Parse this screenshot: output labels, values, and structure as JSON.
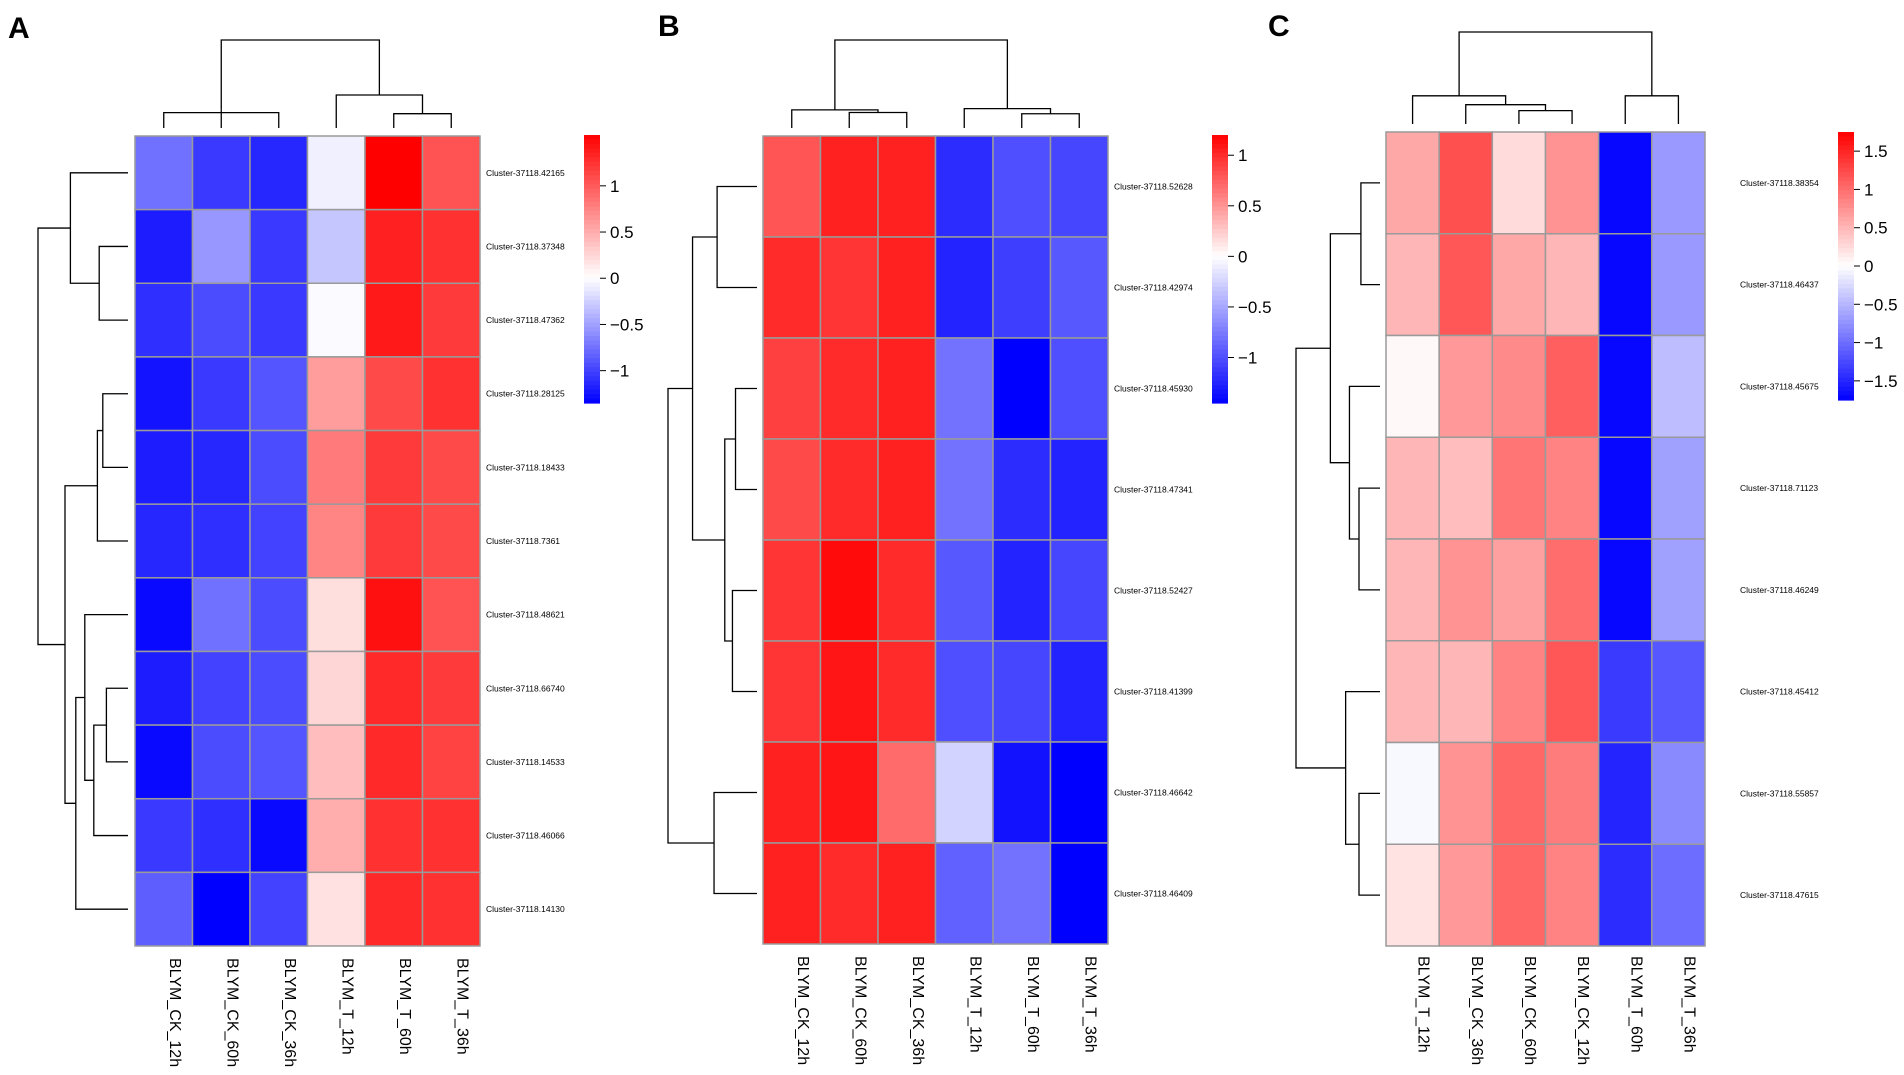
{
  "chart_data": [
    {
      "type": "heatmap",
      "panel_label": "A",
      "columns": [
        "BLYM_CK_12h",
        "BLYM_CK_60h",
        "BLYM_CK_36h",
        "BLYM_T_12h",
        "BLYM_T_60h",
        "BLYM_T_36h"
      ],
      "rows": [
        "Cluster-37118.42165",
        "Cluster-37118.37348",
        "Cluster-37118.47362",
        "Cluster-37118.28125",
        "Cluster-37118.18433",
        "Cluster-37118.7361",
        "Cluster-37118.48621",
        "Cluster-37118.66740",
        "Cluster-37118.14533",
        "Cluster-37118.46066",
        "Cluster-37118.14130"
      ],
      "values": [
        [
          -0.75,
          -1.05,
          -1.15,
          -0.08,
          1.55,
          1.05
        ],
        [
          -1.2,
          -0.55,
          -1.05,
          -0.3,
          1.35,
          1.25
        ],
        [
          -1.1,
          -0.95,
          -1.05,
          -0.02,
          1.4,
          1.2
        ],
        [
          -1.25,
          -1.05,
          -0.9,
          0.6,
          1.1,
          1.25
        ],
        [
          -1.2,
          -1.15,
          -0.95,
          0.8,
          1.2,
          1.1
        ],
        [
          -1.15,
          -1.1,
          -1.0,
          0.75,
          1.2,
          1.1
        ],
        [
          -1.3,
          -0.75,
          -0.95,
          0.2,
          1.45,
          1.05
        ],
        [
          -1.2,
          -1.0,
          -0.95,
          0.25,
          1.3,
          1.2
        ],
        [
          -1.3,
          -0.95,
          -0.9,
          0.4,
          1.3,
          1.15
        ],
        [
          -1.05,
          -1.1,
          -1.3,
          0.5,
          1.25,
          1.25
        ],
        [
          -0.85,
          -1.35,
          -1.0,
          0.18,
          1.3,
          1.25
        ]
      ],
      "colorbar": {
        "ticks": [
          1,
          0.5,
          0,
          -0.5,
          -1
        ],
        "tick_labels": [
          "1",
          "0.5",
          "0",
          "−0.5",
          "−1"
        ],
        "min": -1.35,
        "max": 1.55
      },
      "col_order_note": "columns listed in displayed (clustered) order",
      "col_tree": [
        [
          0,
          2,
          0.7
        ],
        [
          1,
          2,
          0.75
        ],
        [
          0,
          1,
          0.85
        ],
        [
          4,
          5,
          0.65
        ],
        [
          3,
          5,
          1.5
        ],
        [
          0,
          5,
          4.0
        ]
      ],
      "row_tree": [
        [
          1,
          2,
          0.8
        ],
        [
          0,
          2,
          1.6
        ],
        [
          3,
          4,
          0.7
        ],
        [
          3,
          5,
          0.85
        ],
        [
          7,
          8,
          0.6
        ],
        [
          7,
          9,
          0.95
        ],
        [
          6,
          9,
          1.2
        ],
        [
          6,
          10,
          1.45
        ],
        [
          3,
          10,
          1.75
        ],
        [
          0,
          10,
          2.5
        ]
      ]
    },
    {
      "type": "heatmap",
      "panel_label": "B",
      "columns": [
        "BLYM_CK_12h",
        "BLYM_CK_60h",
        "BLYM_CK_36h",
        "BLYM_T_12h",
        "BLYM_T_60h",
        "BLYM_T_36h"
      ],
      "rows": [
        "Cluster-37118.52628",
        "Cluster-37118.42974",
        "Cluster-37118.45930",
        "Cluster-37118.47341",
        "Cluster-37118.52427",
        "Cluster-37118.41399",
        "Cluster-37118.46642",
        "Cluster-37118.46409"
      ],
      "values": [
        [
          0.8,
          1.05,
          1.05,
          -1.2,
          -1.0,
          -1.05
        ],
        [
          1.0,
          0.95,
          1.05,
          -1.25,
          -1.1,
          -0.95
        ],
        [
          0.9,
          1.0,
          1.05,
          -0.8,
          -1.45,
          -1.0
        ],
        [
          0.85,
          1.0,
          1.05,
          -0.8,
          -1.2,
          -1.25
        ],
        [
          0.95,
          1.15,
          1.0,
          -0.95,
          -1.25,
          -1.05
        ],
        [
          0.95,
          1.1,
          1.0,
          -1.0,
          -1.05,
          -1.25
        ],
        [
          1.05,
          1.1,
          0.7,
          -0.25,
          -1.35,
          -1.45
        ],
        [
          1.05,
          1.0,
          1.05,
          -0.9,
          -0.8,
          -1.45
        ]
      ],
      "colorbar": {
        "ticks": [
          1,
          0.5,
          0,
          -0.5,
          -1
        ],
        "tick_labels": [
          "1",
          "0.5",
          "0",
          "−0.5",
          "−1"
        ],
        "min": -1.45,
        "max": 1.2
      },
      "col_tree": [
        [
          1,
          2,
          0.6
        ],
        [
          0,
          2,
          0.7
        ],
        [
          4,
          5,
          0.55
        ],
        [
          3,
          5,
          0.75
        ],
        [
          0,
          5,
          3.4
        ]
      ],
      "row_tree": [
        [
          0,
          1,
          1.3
        ],
        [
          2,
          3,
          0.7
        ],
        [
          4,
          5,
          0.8
        ],
        [
          2,
          5,
          1.05
        ],
        [
          0,
          5,
          2.1
        ],
        [
          6,
          7,
          1.4
        ],
        [
          0,
          7,
          2.9
        ]
      ]
    },
    {
      "type": "heatmap",
      "panel_label": "C",
      "columns": [
        "BLYM_T_12h",
        "BLYM_CK_36h",
        "BLYM_CK_60h",
        "BLYM_CK_12h",
        "BLYM_T_60h",
        "BLYM_T_36h"
      ],
      "rows": [
        "Cluster-37118.38354",
        "Cluster-37118.46437",
        "Cluster-37118.45675",
        "Cluster-37118.71123",
        "Cluster-37118.46249",
        "Cluster-37118.45412",
        "Cluster-37118.55857",
        "Cluster-37118.47615"
      ],
      "values": [
        [
          0.6,
          1.2,
          0.25,
          0.75,
          -1.7,
          -0.7
        ],
        [
          0.5,
          1.15,
          0.6,
          0.5,
          -1.7,
          -0.7
        ],
        [
          0.05,
          0.7,
          0.8,
          1.1,
          -1.7,
          -0.45
        ],
        [
          0.5,
          0.45,
          0.95,
          0.85,
          -1.7,
          -0.65
        ],
        [
          0.5,
          0.75,
          0.65,
          1.0,
          -1.7,
          -0.65
        ],
        [
          0.5,
          0.5,
          0.85,
          1.15,
          -1.35,
          -1.15
        ],
        [
          -0.05,
          0.75,
          1.05,
          0.9,
          -1.5,
          -0.8
        ],
        [
          0.2,
          0.7,
          1.05,
          0.85,
          -1.45,
          -1.0
        ]
      ],
      "colorbar": {
        "ticks": [
          1.5,
          1,
          0.5,
          0,
          -0.5,
          -1,
          -1.5
        ],
        "tick_labels": [
          "1.5",
          "1",
          "0.5",
          "0",
          "−0.5",
          "−1",
          "−1.5"
        ],
        "min": -1.75,
        "max": 1.75
      },
      "col_tree": [
        [
          2,
          3,
          0.45
        ],
        [
          1,
          3,
          0.65
        ],
        [
          0,
          3,
          0.95
        ],
        [
          4,
          5,
          0.95
        ],
        [
          0,
          5,
          3.1
        ]
      ],
      "row_tree": [
        [
          0,
          1,
          0.5
        ],
        [
          3,
          4,
          0.55
        ],
        [
          2,
          4,
          0.8
        ],
        [
          0,
          4,
          1.3
        ],
        [
          6,
          7,
          0.55
        ],
        [
          5,
          7,
          0.9
        ],
        [
          0,
          7,
          2.2
        ]
      ]
    }
  ]
}
